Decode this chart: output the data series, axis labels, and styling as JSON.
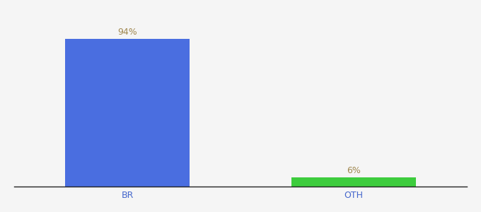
{
  "categories": [
    "BR",
    "OTH"
  ],
  "values": [
    94,
    6
  ],
  "bar_colors": [
    "#4a6ee0",
    "#3dcc3d"
  ],
  "label_texts": [
    "94%",
    "6%"
  ],
  "ylim": [
    0,
    108
  ],
  "background_color": "#f5f5f5",
  "label_color": "#a08850",
  "label_fontsize": 9,
  "tick_fontsize": 9,
  "tick_color": "#4466cc",
  "bar_width": 0.55,
  "xlim": [
    -0.5,
    1.5
  ]
}
